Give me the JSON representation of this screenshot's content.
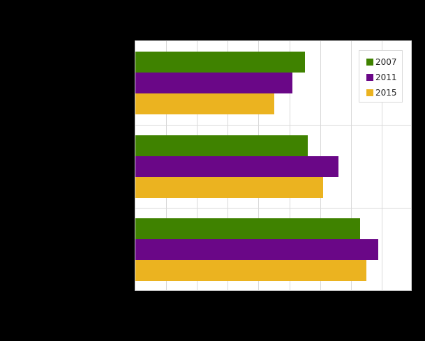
{
  "chart_data": {
    "type": "bar",
    "orientation": "horizontal",
    "title": "",
    "xlabel": "",
    "ylabel": "",
    "categories": [
      "",
      "",
      ""
    ],
    "series": [
      {
        "name": "2007",
        "color": "#3f8200",
        "values": [
          5.5,
          5.6,
          7.3
        ]
      },
      {
        "name": "2011",
        "color": "#6a0787",
        "values": [
          5.1,
          6.6,
          7.9
        ]
      },
      {
        "name": "2015",
        "color": "#ebb320",
        "values": [
          4.5,
          6.1,
          7.5
        ]
      }
    ],
    "xlim": [
      0,
      9
    ],
    "x_gridlines": 9,
    "grid": true,
    "legend_position": "top-right inside",
    "note": "Axis tick labels and category labels are rendered in black on black background and are not legible."
  },
  "legend": {
    "items": [
      {
        "label": "2007",
        "color": "#3f8200"
      },
      {
        "label": "2011",
        "color": "#6a0787"
      },
      {
        "label": "2015",
        "color": "#ebb320"
      }
    ]
  }
}
